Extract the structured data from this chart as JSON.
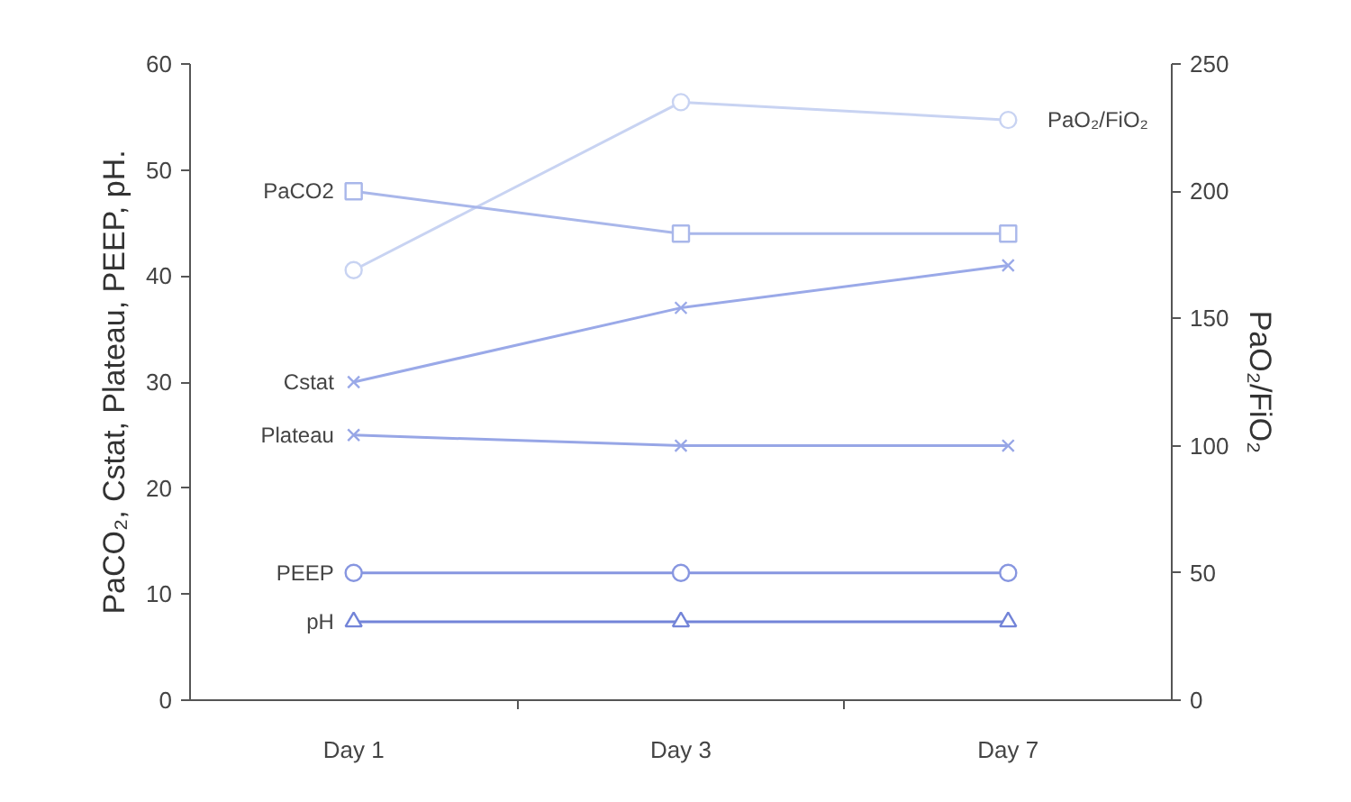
{
  "chart_data": {
    "type": "line",
    "categories": [
      "Day 1",
      "Day 3",
      "Day 7"
    ],
    "ylabel": "PaCO₂, Cstat, Plateau, PEEP, pH.",
    "y2label": "PaO₂/FiO₂",
    "ylim": [
      0,
      60
    ],
    "yticks": [
      0,
      10,
      20,
      30,
      40,
      50,
      60
    ],
    "y2lim": [
      0,
      250
    ],
    "y2ticks": [
      0,
      50,
      100,
      150,
      200,
      250
    ],
    "grid": false,
    "legend": false,
    "series": [
      {
        "name": "PaO₂/FiO₂",
        "color": "#c8d3f2",
        "values": [
          169,
          235,
          228
        ],
        "axis": "y2",
        "marker": "circle"
      },
      {
        "name": "PaCO2",
        "color": "#a9b7ea",
        "values": [
          48,
          44,
          44
        ],
        "marker": "square"
      },
      {
        "name": "Cstat",
        "color": "#9aa9e8",
        "values": [
          30,
          37,
          41
        ],
        "marker": "cross"
      },
      {
        "name": "Plateau",
        "color": "#97a6e6",
        "values": [
          25,
          24,
          24
        ],
        "marker": "cross"
      },
      {
        "name": "PEEP",
        "color": "#8796e0",
        "values": [
          12,
          12,
          12
        ],
        "marker": "circle"
      },
      {
        "name": "pH",
        "color": "#7384d8",
        "values": [
          7.4,
          7.4,
          7.4
        ],
        "marker": "triangle"
      }
    ]
  }
}
